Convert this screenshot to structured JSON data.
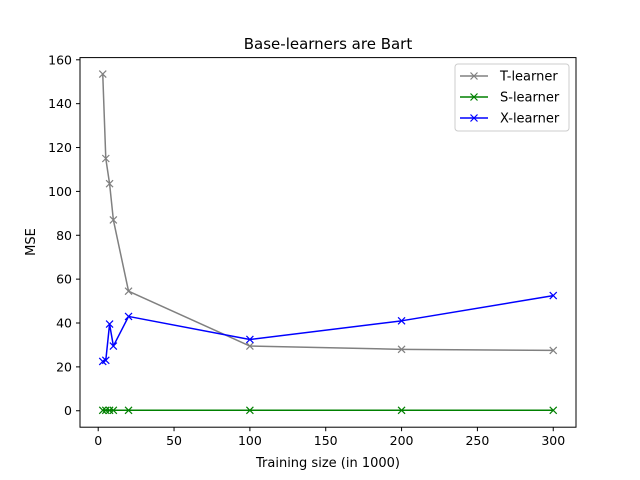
{
  "chart_data": {
    "type": "line",
    "title": "Base-learners are Bart",
    "xlabel": "Training size (in 1000)",
    "ylabel": "MSE",
    "xlim": [
      -12,
      315
    ],
    "ylim": [
      -7.5,
      161
    ],
    "xticks": [
      0,
      50,
      100,
      150,
      200,
      250,
      300
    ],
    "yticks": [
      0,
      20,
      40,
      60,
      80,
      100,
      120,
      140,
      160
    ],
    "legend_position": "top-right",
    "x": [
      3,
      5,
      7.5,
      10,
      20,
      100,
      200,
      300
    ],
    "series": [
      {
        "name": "T-learner",
        "color": "#808080",
        "marker": "x",
        "values": [
          153.5,
          115,
          103.5,
          87,
          54.5,
          29.5,
          28,
          27.5
        ]
      },
      {
        "name": "S-learner",
        "color": "#008000",
        "marker": "x",
        "values": [
          0.2,
          0.2,
          0.2,
          0.2,
          0.2,
          0.2,
          0.2,
          0.2
        ]
      },
      {
        "name": "X-learner",
        "color": "#0000ff",
        "marker": "x",
        "values": [
          22.5,
          23,
          39.5,
          29.5,
          43,
          32.5,
          41,
          52.5
        ]
      }
    ]
  }
}
